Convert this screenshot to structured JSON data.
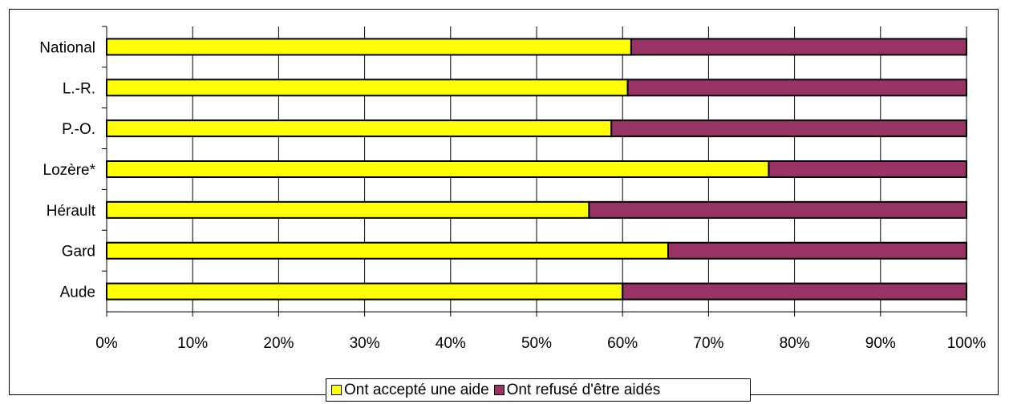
{
  "chart_data": {
    "type": "bar",
    "orientation": "horizontal",
    "stacked": "percent",
    "categories": [
      "National",
      "L.-R.",
      "P.-O.",
      "Lozère*",
      "Hérault",
      "Gard",
      "Aude"
    ],
    "series": [
      {
        "name": "Ont accepté une aide",
        "color": "#FFFF00",
        "values": [
          61,
          60.6,
          58.7,
          77,
          56.1,
          65.3,
          60
        ]
      },
      {
        "name": "Ont refusé d'être aidés",
        "color": "#993366",
        "values": [
          39,
          39.4,
          41.3,
          23,
          43.9,
          34.7,
          40
        ]
      }
    ],
    "xticks": [
      "0%",
      "10%",
      "20%",
      "30%",
      "40%",
      "50%",
      "60%",
      "70%",
      "80%",
      "90%",
      "100%"
    ],
    "xlim": [
      0,
      100
    ],
    "grid": true,
    "legend_position": "bottom",
    "title": "",
    "xlabel": "",
    "ylabel": ""
  }
}
